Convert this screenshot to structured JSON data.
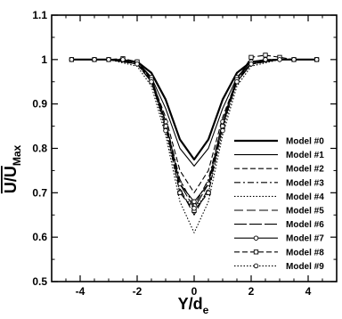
{
  "chart_data": {
    "type": "line",
    "title": "",
    "xlabel": {
      "main": "Y/d",
      "sub": "e"
    },
    "ylabel": {
      "main": "U/U",
      "sub": "Max"
    },
    "xlim": [
      -5,
      5
    ],
    "ylim": [
      0.5,
      1.1
    ],
    "xticks": [
      -4,
      -2,
      0,
      2,
      4
    ],
    "yticks": [
      0.5,
      0.6,
      0.7,
      0.8,
      0.9,
      1,
      1.1
    ],
    "xtick_labels": [
      "-4",
      "-2",
      "0",
      "2",
      "4"
    ],
    "ytick_labels": [
      "0.5",
      "0.6",
      "0.7",
      "0.8",
      "0.9",
      "1",
      "1.1"
    ],
    "grid": false,
    "legend_position": "right",
    "series": [
      {
        "name": "Model #0",
        "style": "solid-thick",
        "x": [
          -4.3,
          -3,
          -2,
          -1.5,
          -1,
          -0.5,
          0,
          0.5,
          1,
          1.5,
          2,
          3,
          4.3
        ],
        "y": [
          1,
          1,
          0.995,
          0.97,
          0.91,
          0.82,
          0.775,
          0.82,
          0.91,
          0.97,
          0.995,
          1,
          1
        ]
      },
      {
        "name": "Model #1",
        "style": "solid",
        "x": [
          -4.3,
          -3,
          -2,
          -1.5,
          -1,
          -0.5,
          0,
          0.5,
          1,
          1.5,
          2,
          3,
          4.3
        ],
        "y": [
          1,
          1,
          0.99,
          0.96,
          0.89,
          0.8,
          0.76,
          0.8,
          0.89,
          0.96,
          0.99,
          1,
          1
        ]
      },
      {
        "name": "Model #2",
        "style": "dashed",
        "x": [
          -4.3,
          -3,
          -2,
          -1.5,
          -1,
          -0.5,
          0,
          0.5,
          1,
          1.5,
          2,
          3,
          4.3
        ],
        "y": [
          1,
          1,
          0.99,
          0.955,
          0.87,
          0.75,
          0.7,
          0.75,
          0.87,
          0.955,
          0.99,
          1,
          1
        ]
      },
      {
        "name": "Model #3",
        "style": "dashdot",
        "x": [
          -4.3,
          -3,
          -2,
          -1.5,
          -1,
          -0.5,
          0,
          0.5,
          1,
          1.5,
          2,
          3,
          4.3
        ],
        "y": [
          1,
          1,
          0.99,
          0.95,
          0.86,
          0.73,
          0.67,
          0.73,
          0.86,
          0.95,
          0.99,
          1,
          1
        ]
      },
      {
        "name": "Model #4",
        "style": "dotted",
        "x": [
          -4.3,
          -3,
          -2,
          -1.5,
          -1,
          -0.5,
          0,
          0.5,
          1,
          1.5,
          2,
          3,
          4.3
        ],
        "y": [
          1,
          1,
          0.985,
          0.94,
          0.83,
          0.68,
          0.61,
          0.68,
          0.83,
          0.94,
          0.985,
          1,
          1
        ]
      },
      {
        "name": "Model #5",
        "style": "longdash",
        "x": [
          -4.3,
          -3,
          -2,
          -1.5,
          -1,
          -0.5,
          0,
          0.5,
          1,
          1.5,
          2,
          3,
          4.3
        ],
        "y": [
          1,
          1,
          0.99,
          0.95,
          0.85,
          0.71,
          0.65,
          0.71,
          0.85,
          0.95,
          0.99,
          1,
          1
        ]
      },
      {
        "name": "Model #6",
        "style": "longdash2",
        "x": [
          -4.3,
          -3,
          -2,
          -1.5,
          -1,
          -0.5,
          0,
          0.5,
          1,
          1.5,
          2,
          3,
          4.3
        ],
        "y": [
          1,
          1,
          0.99,
          0.95,
          0.86,
          0.72,
          0.665,
          0.72,
          0.86,
          0.95,
          0.99,
          1,
          1
        ]
      },
      {
        "name": "Model #7",
        "style": "solid-circle",
        "x": [
          -4.3,
          -3.5,
          -3,
          -2.5,
          -2,
          -1.5,
          -1,
          -0.5,
          0,
          0.5,
          1,
          1.5,
          2,
          2.5,
          3,
          3.5,
          4.3
        ],
        "y": [
          1,
          1,
          1,
          1,
          0.995,
          0.96,
          0.86,
          0.72,
          0.68,
          0.72,
          0.86,
          0.96,
          0.995,
          1,
          1,
          1,
          1
        ]
      },
      {
        "name": "Model #8",
        "style": "dashed-square",
        "x": [
          -4.3,
          -3.5,
          -3,
          -2.5,
          -2,
          -1.5,
          -1,
          -0.5,
          0,
          0.5,
          1,
          1.5,
          2,
          2.5,
          3,
          3.5,
          4.3
        ],
        "y": [
          1,
          1,
          1,
          1.002,
          0.995,
          0.955,
          0.85,
          0.7,
          0.66,
          0.7,
          0.85,
          0.955,
          1.005,
          1.01,
          1.005,
          1,
          1
        ]
      },
      {
        "name": "Model #9",
        "style": "dotted-circle",
        "x": [
          -4.3,
          -3.5,
          -3,
          -2.5,
          -2,
          -1.5,
          -1,
          -0.5,
          0,
          0.5,
          1,
          1.5,
          2,
          2.5,
          3,
          3.5,
          4.3
        ],
        "y": [
          1,
          1,
          1,
          1,
          0.99,
          0.95,
          0.84,
          0.7,
          0.665,
          0.7,
          0.84,
          0.95,
          0.99,
          1,
          1,
          1,
          1
        ]
      }
    ]
  }
}
